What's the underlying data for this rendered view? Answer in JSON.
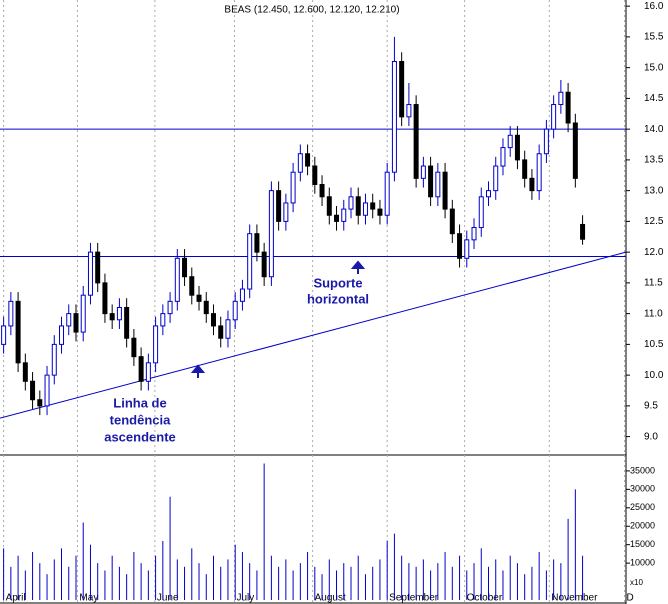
{
  "chart_data": {
    "type": "candlestick",
    "title": "BEAS (12.450, 12.600, 12.120, 12.210)",
    "open": [
      10.5,
      10.8,
      11.2,
      10.2,
      9.9,
      9.6,
      9.5,
      10.0,
      10.5,
      10.8,
      11.0,
      10.7,
      11.3,
      12.0,
      11.5,
      11.0,
      10.9,
      11.1,
      10.6,
      10.3,
      9.9,
      10.2,
      10.8,
      11.0,
      11.2,
      11.9,
      11.6,
      11.3,
      11.2,
      11.0,
      10.8,
      10.6,
      10.9,
      11.2,
      11.4,
      12.3,
      12.0,
      11.6,
      13.0,
      12.5,
      12.8,
      13.3,
      13.6,
      13.4,
      13.1,
      12.9,
      12.6,
      12.5,
      12.7,
      12.9,
      12.6,
      12.8,
      12.7,
      12.6,
      13.3,
      15.1,
      14.2,
      14.4,
      13.2,
      13.4,
      12.9,
      13.3,
      12.7,
      12.3,
      11.9,
      12.2,
      12.4,
      12.9,
      13.0,
      13.4,
      13.7,
      13.9,
      13.5,
      13.2,
      13.0,
      13.6,
      14.0,
      14.4,
      14.6,
      14.1,
      12.45
    ],
    "high": [
      10.95,
      11.35,
      11.35,
      10.35,
      10.05,
      9.75,
      10.15,
      10.65,
      10.95,
      11.15,
      11.15,
      11.45,
      12.15,
      12.15,
      11.65,
      11.15,
      11.25,
      11.25,
      10.75,
      10.45,
      10.35,
      10.95,
      11.15,
      11.35,
      12.05,
      12.05,
      11.75,
      11.45,
      11.35,
      11.15,
      10.95,
      11.05,
      11.35,
      11.55,
      12.45,
      12.45,
      12.15,
      13.15,
      13.15,
      12.95,
      13.45,
      13.75,
      13.75,
      13.55,
      13.25,
      13.05,
      12.75,
      12.85,
      13.05,
      13.05,
      12.95,
      12.95,
      12.85,
      13.45,
      15.5,
      15.25,
      14.75,
      14.55,
      13.55,
      13.55,
      13.45,
      13.45,
      12.85,
      12.45,
      12.35,
      12.55,
      13.05,
      13.15,
      13.55,
      13.85,
      14.05,
      14.05,
      13.65,
      13.35,
      13.75,
      14.15,
      14.55,
      14.8,
      14.75,
      14.25,
      12.6
    ],
    "low": [
      10.35,
      10.65,
      10.05,
      9.75,
      9.45,
      9.35,
      9.35,
      9.85,
      10.35,
      10.65,
      10.55,
      10.55,
      11.15,
      11.35,
      10.85,
      10.75,
      10.75,
      10.45,
      10.15,
      9.75,
      9.75,
      10.05,
      10.65,
      10.85,
      11.05,
      11.45,
      11.15,
      11.05,
      10.85,
      10.65,
      10.45,
      10.45,
      10.75,
      11.05,
      11.25,
      11.85,
      11.45,
      11.45,
      12.35,
      12.35,
      12.65,
      13.15,
      13.25,
      12.95,
      12.75,
      12.45,
      12.35,
      12.35,
      12.55,
      12.45,
      12.45,
      12.55,
      12.45,
      12.45,
      13.15,
      14.05,
      14.05,
      13.05,
      13.05,
      12.75,
      12.75,
      12.55,
      12.15,
      11.75,
      11.75,
      12.05,
      12.25,
      12.75,
      12.85,
      13.25,
      13.55,
      13.35,
      13.05,
      12.85,
      12.85,
      13.45,
      13.85,
      14.25,
      13.95,
      13.05,
      12.12
    ],
    "close": [
      10.8,
      11.2,
      10.2,
      9.9,
      9.6,
      9.5,
      10.0,
      10.5,
      10.8,
      11.0,
      10.7,
      11.3,
      12.0,
      11.5,
      11.0,
      10.9,
      11.1,
      10.6,
      10.3,
      9.9,
      10.2,
      10.8,
      11.0,
      11.2,
      11.9,
      11.6,
      11.3,
      11.2,
      11.0,
      10.8,
      10.6,
      10.9,
      11.2,
      11.4,
      12.3,
      12.0,
      11.6,
      13.0,
      12.5,
      12.8,
      13.3,
      13.6,
      13.4,
      13.1,
      12.9,
      12.6,
      12.5,
      12.7,
      12.9,
      12.6,
      12.8,
      12.7,
      12.6,
      13.3,
      15.1,
      14.2,
      14.4,
      13.2,
      13.4,
      12.9,
      13.3,
      12.7,
      12.3,
      11.9,
      12.2,
      12.4,
      12.9,
      13.0,
      13.4,
      13.7,
      13.9,
      13.5,
      13.2,
      13.0,
      13.6,
      14.0,
      14.4,
      14.6,
      14.1,
      13.2,
      12.21
    ],
    "volume": [
      14000,
      9000,
      12000,
      8000,
      13000,
      10000,
      7000,
      11000,
      14000,
      9000,
      12000,
      21000,
      15000,
      10000,
      8000,
      12000,
      9000,
      7000,
      13000,
      10000,
      8000,
      12000,
      16000,
      28000,
      11000,
      9000,
      14000,
      10000,
      7000,
      12000,
      9000,
      11000,
      15000,
      13000,
      10000,
      8000,
      37000,
      12000,
      9000,
      11000,
      8000,
      10000,
      13000,
      9000,
      7000,
      11000,
      8000,
      10000,
      9000,
      12000,
      7000,
      9000,
      11000,
      16000,
      18000,
      12000,
      10000,
      9000,
      11000,
      8000,
      10000,
      13000,
      9000,
      12000,
      8000,
      10000,
      14000,
      9000,
      11000,
      8000,
      12000,
      10000,
      7000,
      9000,
      13000,
      8000,
      11000,
      10000,
      22000,
      30000,
      12000
    ],
    "up_color": "#0000cc",
    "down_color": "#000000",
    "volume_color": "#0000cc",
    "line_color": "#0000cc",
    "xlim": [
      -0.5,
      86
    ],
    "xticks": [
      {
        "value": 0,
        "label": "April"
      },
      {
        "value": 10.2,
        "label": "May"
      },
      {
        "value": 20.9,
        "label": "June"
      },
      {
        "value": 31.9,
        "label": "July"
      },
      {
        "value": 42.7,
        "label": "August"
      },
      {
        "value": 53,
        "label": "September"
      },
      {
        "value": 63.7,
        "label": "October"
      },
      {
        "value": 75.4,
        "label": "November"
      },
      {
        "value": 85.8,
        "label": "D"
      }
    ],
    "ylim": [
      8.75,
      16.1
    ],
    "yticks": [
      {
        "value": 9,
        "label": "9.0"
      },
      9.5,
      {
        "value": 10,
        "label": "10.0"
      },
      10.5,
      {
        "value": 11,
        "label": "11.0"
      },
      11.5,
      {
        "value": 12,
        "label": "12.0"
      },
      12.5,
      {
        "value": 13,
        "label": "13.0"
      },
      13.5,
      {
        "value": 14,
        "label": "14.0"
      },
      14.5,
      {
        "value": 15,
        "label": "15.0"
      },
      15.5,
      {
        "value": 16,
        "label": "16.0"
      }
    ],
    "vol_ylim": [
      0,
      38500
    ],
    "vol_yticks": [
      10000,
      15000,
      20000,
      25000,
      30000,
      35000
    ],
    "volume_unit_label": "x10",
    "hlines": [
      14.0,
      11.93
    ],
    "trendline": {
      "x": [
        -0.5,
        86
      ],
      "y": [
        9.3,
        12.0
      ]
    },
    "annotations": [
      {
        "lines": [
          "Suporte",
          "horizontal"
        ]
      },
      {
        "lines": [
          "Linha de",
          "tendência",
          "ascendente"
        ]
      }
    ]
  }
}
